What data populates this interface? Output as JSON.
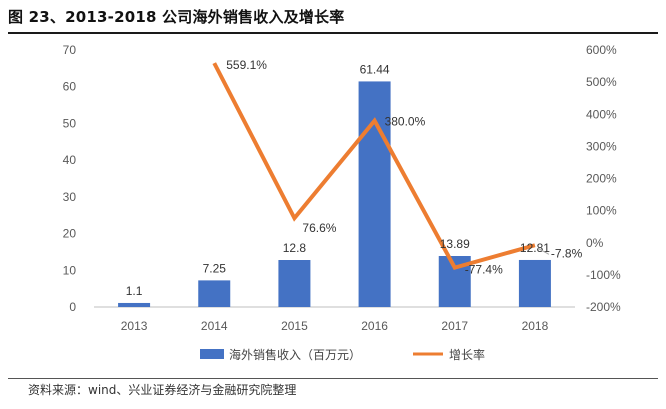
{
  "title": "图 23、2013-2018 公司海外销售收入及增长率",
  "source": "资料来源：wind、兴业证券经济与金融研究院整理",
  "chart_data": {
    "type": "bar+line",
    "categories": [
      "2013",
      "2014",
      "2015",
      "2016",
      "2017",
      "2018"
    ],
    "series": [
      {
        "name": "海外销售收入（百万元）",
        "type": "bar",
        "axis": "left",
        "color": "#4472C4",
        "values": [
          1.1,
          7.25,
          12.8,
          61.44,
          13.89,
          12.81
        ],
        "labels": [
          "1.1",
          "7.25",
          "12.8",
          "61.44",
          "13.89",
          "12.81"
        ]
      },
      {
        "name": "增长率",
        "type": "line",
        "axis": "right",
        "color": "#ED7D31",
        "values": [
          null,
          559.1,
          76.6,
          380.0,
          -77.4,
          -7.8
        ],
        "labels": [
          "",
          "559.1%",
          "76.6%",
          "380.0%",
          "-77.4%",
          "-7.8%"
        ]
      }
    ],
    "y_left": {
      "min": 0,
      "max": 70,
      "ticks": [
        "0",
        "10",
        "20",
        "30",
        "40",
        "50",
        "60",
        "70"
      ]
    },
    "y_right": {
      "min": -200,
      "max": 600,
      "ticks": [
        "-200%",
        "-100%",
        "0%",
        "100%",
        "200%",
        "300%",
        "400%",
        "500%",
        "600%"
      ]
    },
    "grid": false,
    "legend_position": "bottom"
  }
}
